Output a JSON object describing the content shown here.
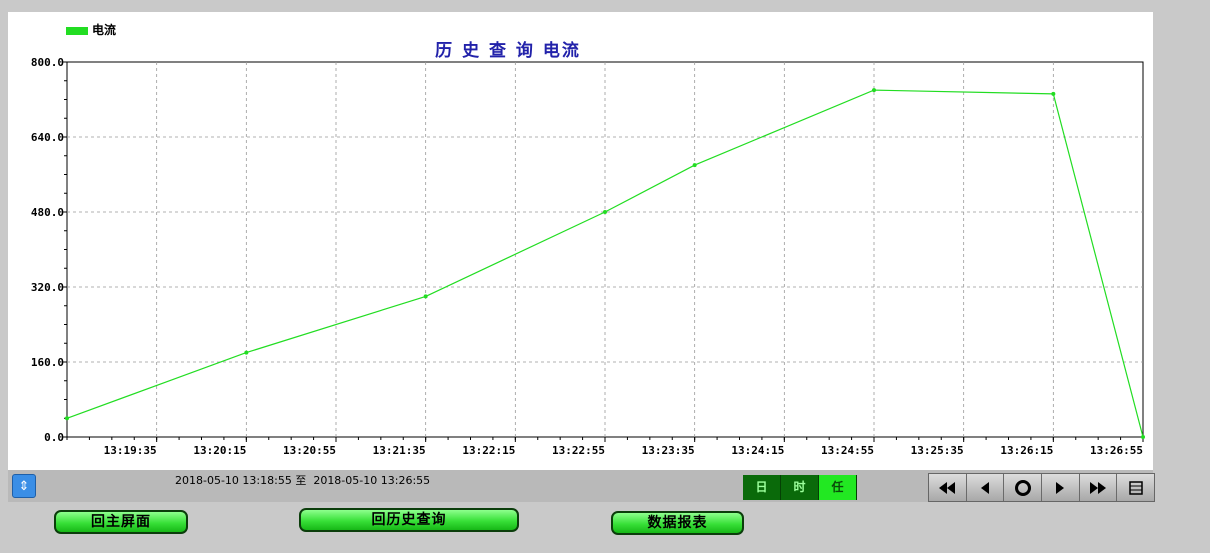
{
  "chart_data": {
    "type": "line",
    "title": "历 史 查 询  电流",
    "legend": {
      "label": "电流",
      "color": "#22dd22",
      "position": "top-left"
    },
    "series": [
      {
        "name": "电流",
        "color": "#22dd22",
        "x": [
          "13:18:55",
          "13:20:15",
          "13:21:35",
          "13:22:55",
          "13:23:35",
          "13:24:55",
          "13:26:15",
          "13:26:55"
        ],
        "values": [
          40,
          180,
          300,
          480,
          580,
          740,
          732,
          0
        ]
      }
    ],
    "y_ticks": [
      "0.0",
      "160.0",
      "320.0",
      "480.0",
      "640.0",
      "800.0"
    ],
    "x_ticks": [
      "13:19:35",
      "13:20:15",
      "13:20:55",
      "13:21:35",
      "13:22:15",
      "13:22:55",
      "13:23:35",
      "13:24:15",
      "13:24:55",
      "13:25:35",
      "13:26:15",
      "13:26:55"
    ],
    "ylim": [
      0,
      800
    ],
    "xlim": [
      "13:18:55",
      "13:26:55"
    ],
    "grid": true
  },
  "statusbar": {
    "scroll_icon": "up-down-icon",
    "range_text": "2018-05-10 13:18:55 至  2018-05-10 13:26:55",
    "granularity": [
      {
        "label": "日",
        "active": false
      },
      {
        "label": "时",
        "active": false
      },
      {
        "label": "任",
        "active": true
      }
    ],
    "nav_icons": [
      "rewind-icon",
      "prev-icon",
      "record-icon",
      "next-icon",
      "fast-forward-icon",
      "list-icon"
    ]
  },
  "buttons": {
    "home": "回主屏面",
    "history": "回历史查询",
    "report": "数据报表"
  }
}
